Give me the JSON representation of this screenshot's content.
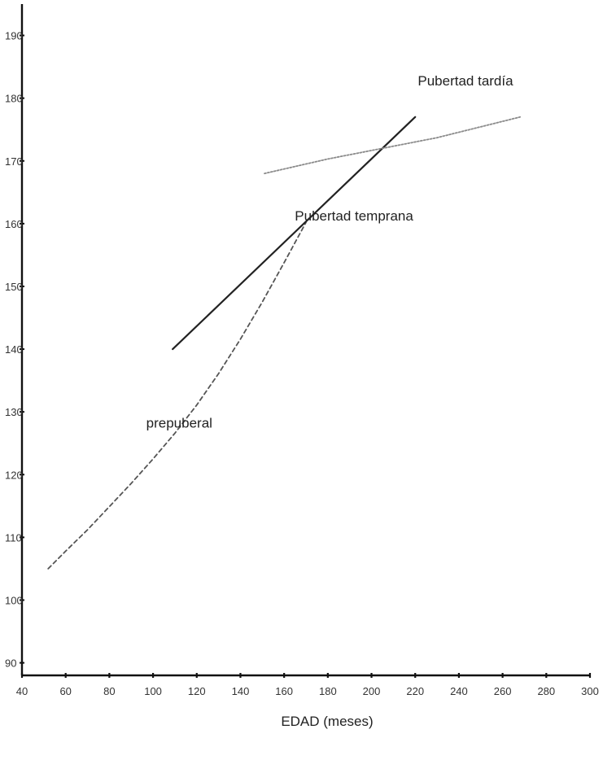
{
  "chart_data": {
    "type": "line",
    "title": "",
    "xlabel": "EDAD (meses)",
    "ylabel": "",
    "xlim": [
      40,
      300
    ],
    "ylim": [
      88,
      195
    ],
    "x_ticks": [
      40,
      60,
      80,
      100,
      120,
      140,
      160,
      180,
      200,
      220,
      240,
      260,
      280,
      300
    ],
    "y_ticks": [
      90,
      100,
      110,
      120,
      130,
      140,
      150,
      160,
      170,
      180,
      190
    ],
    "grid": false,
    "series": [
      {
        "id": "prepuberal",
        "style": "dashed",
        "color": "#555555",
        "x": [
          52,
          60,
          70,
          80,
          90,
          100,
          110,
          120,
          130,
          140,
          150,
          160,
          170
        ],
        "y": [
          105,
          107.8,
          111.2,
          114.9,
          118.6,
          122.5,
          126.6,
          131.1,
          136.1,
          141.6,
          147.5,
          153.8,
          160.2
        ]
      },
      {
        "id": "temprana",
        "style": "solid",
        "color": "#222222",
        "x": [
          109,
          220
        ],
        "y": [
          140,
          177
        ]
      },
      {
        "id": "tardia",
        "style": "dotted",
        "color": "#8a8a8a",
        "x": [
          151,
          180,
          205,
          230,
          268
        ],
        "y": [
          168,
          170.3,
          172,
          173.7,
          177
        ]
      }
    ],
    "annotations": [
      {
        "text": "Pubertad tardía",
        "x": 243,
        "y": 182
      },
      {
        "text": "Pubertad temprana",
        "x": 192,
        "y": 160.5
      },
      {
        "text": "prepuberal",
        "x": 112,
        "y": 127.5
      }
    ]
  }
}
